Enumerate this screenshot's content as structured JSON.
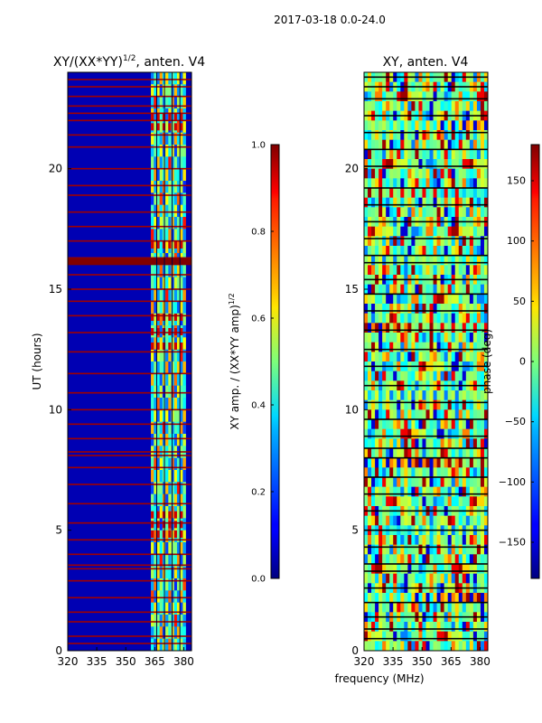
{
  "figure": {
    "suptitle": "2017-03-18 0.0-24.0",
    "xlabel_shared": "frequency (MHz)"
  },
  "chart_data": [
    {
      "type": "heatmap",
      "title_main": "XY/(XX*YY)",
      "title_sup": "1/2",
      "title_tail": ", anten. V4",
      "xlabel": "",
      "ylabel": "UT (hours)",
      "xlim": [
        320,
        384
      ],
      "ylim": [
        0,
        24
      ],
      "xticks": [
        320,
        335,
        350,
        365,
        380
      ],
      "yticks": [
        0,
        5,
        10,
        15,
        20
      ],
      "colormap": "jet",
      "background_value": 0.05,
      "clim": [
        0.0,
        1.0
      ],
      "colorbar": {
        "label_main": "XY amp. / (XX*YY amp)",
        "label_sup": "1/2",
        "ticks": [
          "0.0",
          "0.2",
          "0.4",
          "0.6",
          "0.8",
          "1.0"
        ],
        "tick_values": [
          0.0,
          0.2,
          0.4,
          0.6,
          0.8,
          1.0
        ]
      },
      "saturated_rows_hours": [
        0.3,
        0.6,
        1.2,
        1.6,
        2.2,
        2.9,
        3.4,
        3.55,
        4.0,
        4.6,
        5.3,
        6.1,
        6.9,
        7.6,
        8.1,
        8.25,
        8.8,
        9.4,
        10.0,
        10.7,
        11.5,
        12.4,
        13.2,
        13.9,
        14.5,
        15.0,
        15.6,
        16.05,
        16.2,
        16.3,
        17.0,
        17.6,
        18.2,
        18.9,
        19.3,
        20.0,
        20.9,
        21.4,
        22.0,
        22.3,
        22.6,
        23.0,
        23.4,
        23.7
      ],
      "active_band_MHz": [
        363,
        381
      ],
      "active_values": [
        0.45,
        0.8,
        0.3,
        0.7,
        0.55,
        0.9,
        0.35,
        0.65,
        0.5,
        0.75,
        0.4,
        0.85
      ],
      "hotspot_rows_hours": [
        4.8,
        5.2,
        5.6,
        12.6,
        13.2,
        13.8,
        16.8,
        21.7,
        22.1
      ]
    },
    {
      "type": "heatmap",
      "title": "XY, anten. V4",
      "xlabel": "",
      "ylabel": "",
      "xlim": [
        320,
        384
      ],
      "ylim": [
        0,
        24
      ],
      "xticks": [
        320,
        335,
        350,
        365,
        380
      ],
      "yticks": [
        0,
        5,
        10,
        15,
        20
      ],
      "colormap": "jet",
      "clim": [
        -180,
        180
      ],
      "colorbar": {
        "label": "phase (deg)",
        "ticks": [
          "150",
          "100",
          "50",
          "0",
          "−50",
          "−100",
          "−150"
        ],
        "tick_values": [
          150,
          100,
          50,
          0,
          -50,
          -100,
          -150
        ]
      },
      "black_rows_hours": [
        0.5,
        0.9,
        1.4,
        2.0,
        2.6,
        3.3,
        3.6,
        4.3,
        5.0,
        5.8,
        6.5,
        7.2,
        8.0,
        8.4,
        8.9,
        9.6,
        10.3,
        11.0,
        11.8,
        12.5,
        13.3,
        14.1,
        14.8,
        15.4,
        16.1,
        16.4,
        17.1,
        17.8,
        18.5,
        19.2,
        20.1,
        20.8,
        21.5,
        22.2,
        22.9,
        23.4,
        23.8
      ],
      "phase_palette_deg": [
        -20,
        10,
        -45,
        30,
        -5,
        60,
        -90,
        140,
        -150,
        5,
        -30,
        90,
        20,
        -60,
        170,
        -10
      ]
    }
  ]
}
